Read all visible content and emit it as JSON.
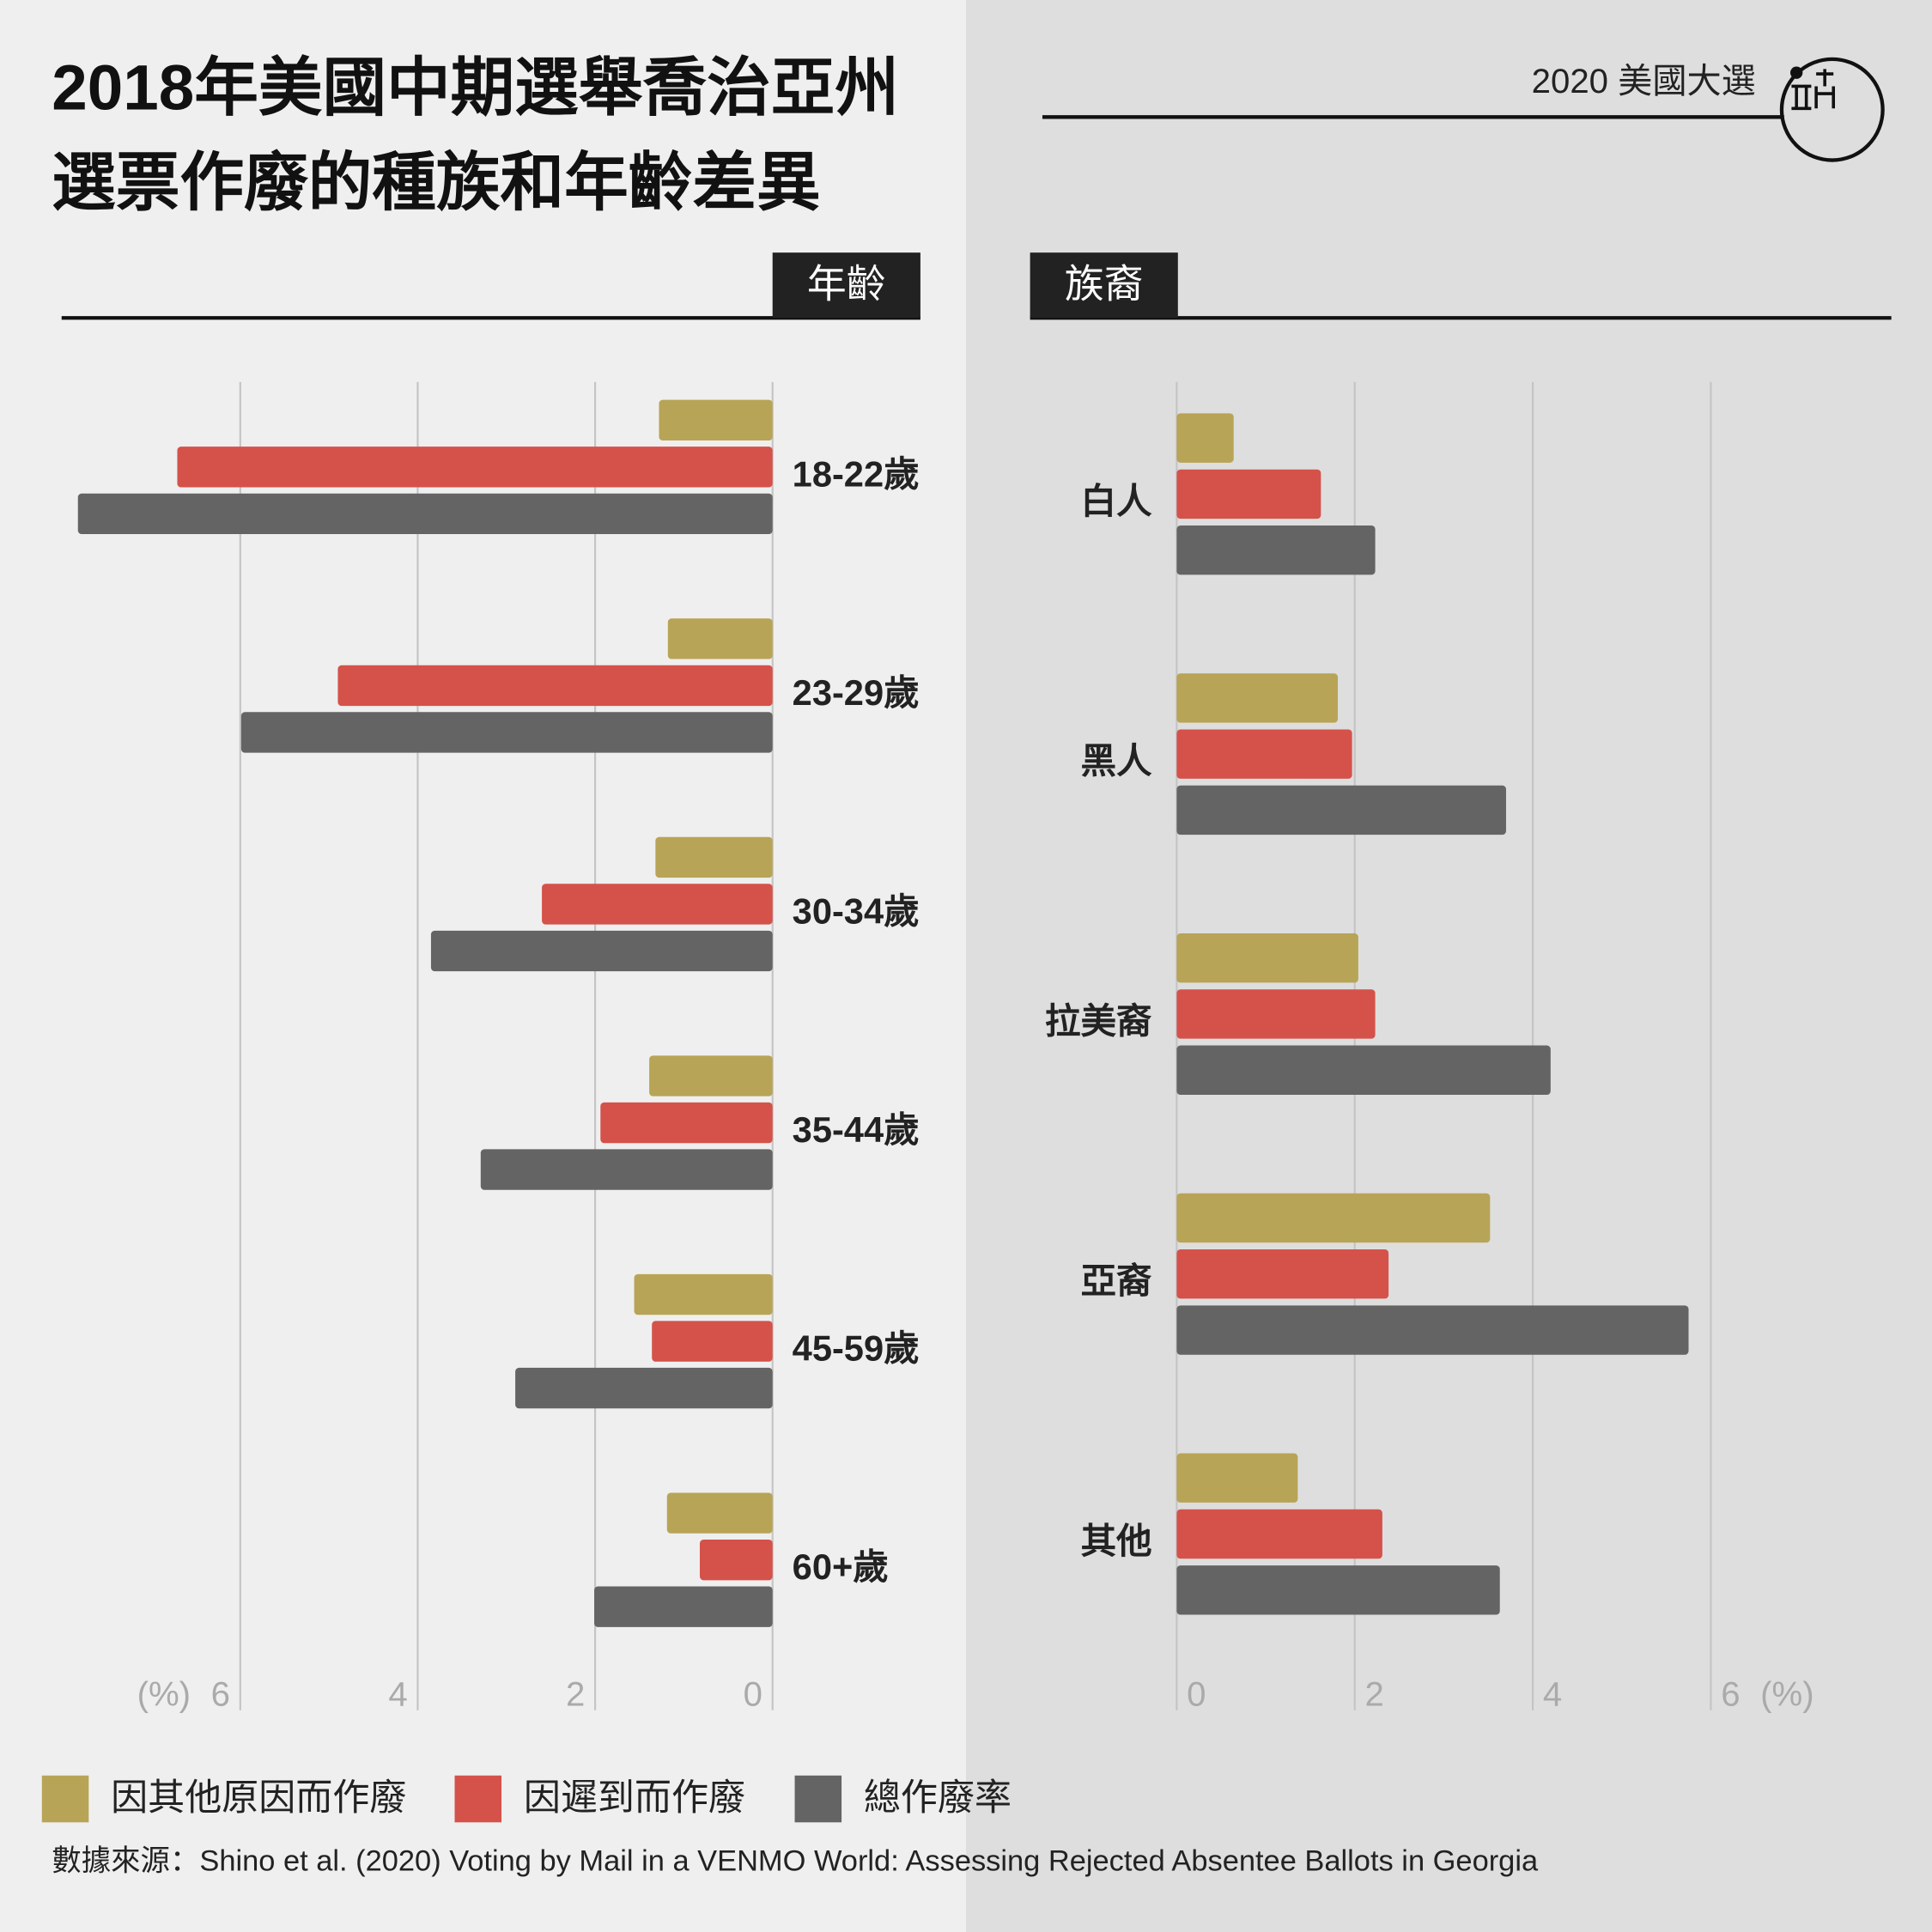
{
  "title": [
    "2018年美國中期選舉喬治亞州",
    "選票作廢的種族和年齡差異"
  ],
  "tag": "2020 美國大選",
  "source": "數據來源：Shino et al. (2020) Voting by Mail in a VENMO World: Assessing Rejected Absentee Ballots in Georgia",
  "chart_data": [
    {
      "type": "bar",
      "orientation": "horizontal",
      "section": "年齡",
      "x_reversed": true,
      "unit": "(%)",
      "categories": [
        "18-22歲",
        "23-29歲",
        "30-34歲",
        "35-44歲",
        "45-59歲",
        "60+歲"
      ],
      "series": [
        {
          "name": "因其他原因而作廢",
          "color": "#b8a456",
          "values": [
            1.28,
            1.18,
            1.32,
            1.39,
            1.56,
            1.19
          ]
        },
        {
          "name": "因遲到而作廢",
          "color": "#d4524a",
          "values": [
            6.71,
            4.9,
            2.6,
            1.94,
            1.36,
            0.82
          ]
        },
        {
          "name": "總作廢率",
          "color": "#646464",
          "values": [
            7.83,
            5.99,
            3.85,
            3.29,
            2.9,
            2.01
          ]
        }
      ],
      "xlim": [
        0,
        8
      ],
      "xticks": [
        0,
        2,
        4,
        6
      ],
      "grid": true
    },
    {
      "type": "bar",
      "orientation": "horizontal",
      "section": "族裔",
      "x_reversed": false,
      "unit": "(%)",
      "categories": [
        "白人",
        "黑人",
        "拉美裔",
        "亞裔",
        "其他"
      ],
      "series": [
        {
          "name": "因其他原因而作廢",
          "color": "#b8a456",
          "values": [
            0.64,
            1.81,
            2.04,
            3.52,
            1.36
          ]
        },
        {
          "name": "因遲到而作廢",
          "color": "#d4524a",
          "values": [
            1.62,
            1.97,
            2.23,
            2.38,
            2.31
          ]
        },
        {
          "name": "總作廢率",
          "color": "#646464",
          "values": [
            2.23,
            3.7,
            4.2,
            5.75,
            3.63
          ]
        }
      ],
      "xlim": [
        0,
        8
      ],
      "xticks": [
        0,
        2,
        4,
        6
      ],
      "grid": true
    }
  ]
}
